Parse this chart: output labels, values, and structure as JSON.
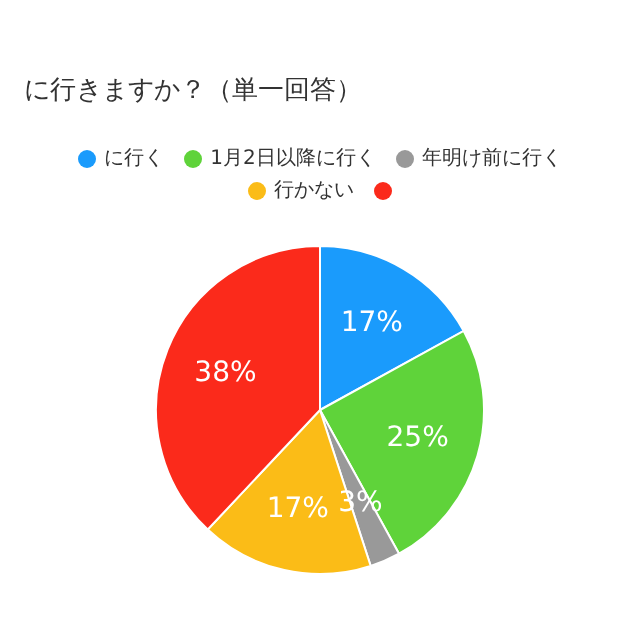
{
  "chart_data": {
    "type": "pie",
    "title": "に行きますか？（単一回答）",
    "categories": [
      "に行く",
      "1月2日以降に行く",
      "年明け前に行く",
      "行かない",
      null
    ],
    "values": [
      17,
      25,
      3,
      17,
      38
    ],
    "colors": [
      "#1a9bfc",
      "#5fd33a",
      "#999999",
      "#fbbc17",
      "#fb2a1b"
    ],
    "value_labels": [
      "17%",
      "25%",
      "3%",
      "17%",
      "38%"
    ],
    "legend": "top"
  }
}
